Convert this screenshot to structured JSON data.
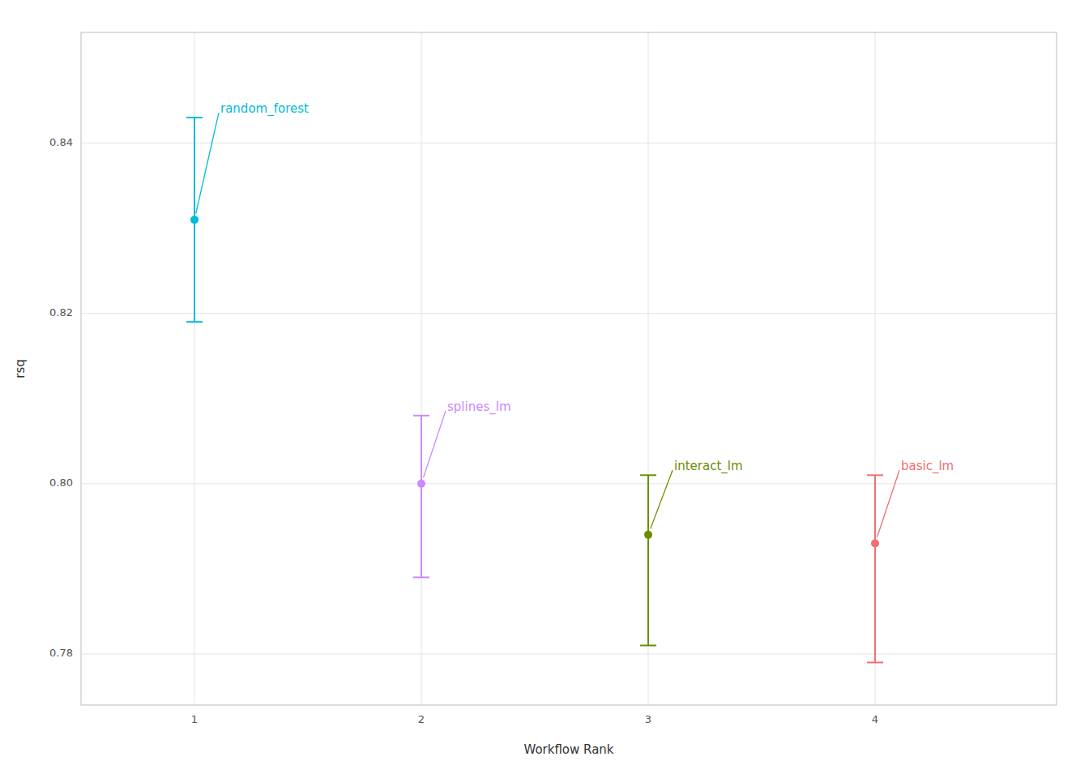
{
  "chart_data": {
    "type": "errorbar",
    "xlabel": "Workflow Rank",
    "ylabel": "rsq",
    "series": [
      {
        "name": "random_forest",
        "color": "#00BCD4",
        "x": 1,
        "value": 0.831,
        "upper": 0.843,
        "lower": 0.819
      },
      {
        "name": "splines_lm",
        "color": "#CC88FF",
        "x": 2,
        "value": 0.8,
        "upper": 0.808,
        "lower": 0.789
      },
      {
        "name": "interact_lm",
        "color": "#6B8E00",
        "x": 3,
        "value": 0.794,
        "upper": 0.801,
        "lower": 0.781
      },
      {
        "name": "basic_lm",
        "color": "#F07070",
        "x": 4,
        "value": 0.793,
        "upper": 0.801,
        "lower": 0.779
      }
    ],
    "xlim": [
      0.5,
      4.8
    ],
    "ylim": [
      0.774,
      0.853
    ],
    "xticks": [
      1,
      2,
      3,
      4
    ],
    "yticks": [
      0.78,
      {
        "value": 0.8,
        "label": "0.80"
      },
      0.82,
      0.84
    ],
    "grid": true
  }
}
